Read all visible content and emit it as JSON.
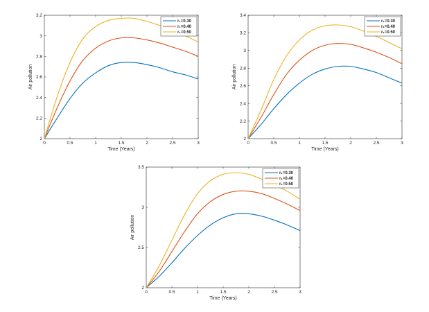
{
  "chart_data": [
    {
      "type": "line",
      "xlabel": "Time (Years)",
      "ylabel": "Air pollution",
      "xlim": [
        0,
        3
      ],
      "ylim": [
        2,
        3.2
      ],
      "xticks": [
        "0",
        "0.5",
        "1",
        "1.5",
        "2",
        "2.5",
        "3"
      ],
      "yticks": [
        "2",
        "2.2",
        "2.4",
        "2.6",
        "2.8",
        "3",
        "3.2"
      ],
      "legend_position": "top-right",
      "x": [
        0,
        0.25,
        0.5,
        0.75,
        1,
        1.25,
        1.5,
        1.75,
        2,
        2.25,
        2.5,
        2.75,
        3
      ],
      "series": [
        {
          "name": "r₁=0.30",
          "color": "#0072BD",
          "values": [
            2.0,
            2.2,
            2.39,
            2.54,
            2.64,
            2.71,
            2.74,
            2.74,
            2.72,
            2.69,
            2.65,
            2.62,
            2.58
          ]
        },
        {
          "name": "r₁=0.40",
          "color": "#D95319",
          "values": [
            2.0,
            2.3,
            2.56,
            2.76,
            2.88,
            2.95,
            2.98,
            2.98,
            2.96,
            2.93,
            2.89,
            2.85,
            2.8
          ]
        },
        {
          "name": "r₁=0.50",
          "color": "#EDB120",
          "values": [
            2.0,
            2.41,
            2.74,
            2.97,
            3.09,
            3.15,
            3.17,
            3.17,
            3.14,
            3.1,
            3.05,
            3.0,
            2.94
          ]
        }
      ]
    },
    {
      "type": "line",
      "xlabel": "Time (Years)",
      "ylabel": "Air pollution",
      "xlim": [
        0,
        3
      ],
      "ylim": [
        2,
        3.4
      ],
      "xticks": [
        "0",
        "0.5",
        "1",
        "1.5",
        "2",
        "2.5",
        "3"
      ],
      "yticks": [
        "2",
        "2.2",
        "2.4",
        "2.6",
        "2.8",
        "3",
        "3.2",
        "3.4"
      ],
      "legend_position": "top-right",
      "x": [
        0,
        0.25,
        0.5,
        0.75,
        1,
        1.25,
        1.5,
        1.75,
        2,
        2.25,
        2.5,
        2.75,
        3
      ],
      "series": [
        {
          "name": "r₁=0.30",
          "color": "#0072BD",
          "values": [
            2.0,
            2.16,
            2.34,
            2.5,
            2.63,
            2.73,
            2.79,
            2.82,
            2.82,
            2.79,
            2.75,
            2.69,
            2.63
          ]
        },
        {
          "name": "r₁=0.40",
          "color": "#D95319",
          "values": [
            2.0,
            2.24,
            2.5,
            2.73,
            2.89,
            3.0,
            3.06,
            3.08,
            3.07,
            3.03,
            2.98,
            2.92,
            2.85
          ]
        },
        {
          "name": "r₁=0.50",
          "color": "#EDB120",
          "values": [
            2.0,
            2.32,
            2.67,
            2.94,
            3.12,
            3.23,
            3.28,
            3.29,
            3.27,
            3.22,
            3.16,
            3.09,
            3.02
          ]
        }
      ]
    },
    {
      "type": "line",
      "xlabel": "Time (Years)",
      "ylabel": "Air pollution",
      "xlim": [
        0,
        3
      ],
      "ylim": [
        2,
        3.5
      ],
      "xticks": [
        "0",
        "0.5",
        "1",
        "1.5",
        "2",
        "2.5",
        "3"
      ],
      "yticks": [
        "2",
        "2.5",
        "3",
        "3.5"
      ],
      "legend_position": "top-right",
      "x": [
        0,
        0.25,
        0.5,
        0.75,
        1,
        1.25,
        1.5,
        1.75,
        2,
        2.25,
        2.5,
        2.75,
        3
      ],
      "series": [
        {
          "name": "r₁=0.30",
          "color": "#0072BD",
          "values": [
            2.0,
            2.14,
            2.31,
            2.49,
            2.65,
            2.78,
            2.87,
            2.92,
            2.92,
            2.89,
            2.84,
            2.78,
            2.71
          ]
        },
        {
          "name": "r₁=0.40",
          "color": "#D95319",
          "values": [
            2.0,
            2.2,
            2.45,
            2.7,
            2.92,
            3.07,
            3.16,
            3.2,
            3.2,
            3.17,
            3.11,
            3.04,
            2.96
          ]
        },
        {
          "name": "r₁=0.50",
          "color": "#EDB120",
          "values": [
            2.0,
            2.27,
            2.59,
            2.91,
            3.17,
            3.33,
            3.41,
            3.43,
            3.41,
            3.35,
            3.28,
            3.2,
            3.1
          ]
        }
      ]
    }
  ]
}
